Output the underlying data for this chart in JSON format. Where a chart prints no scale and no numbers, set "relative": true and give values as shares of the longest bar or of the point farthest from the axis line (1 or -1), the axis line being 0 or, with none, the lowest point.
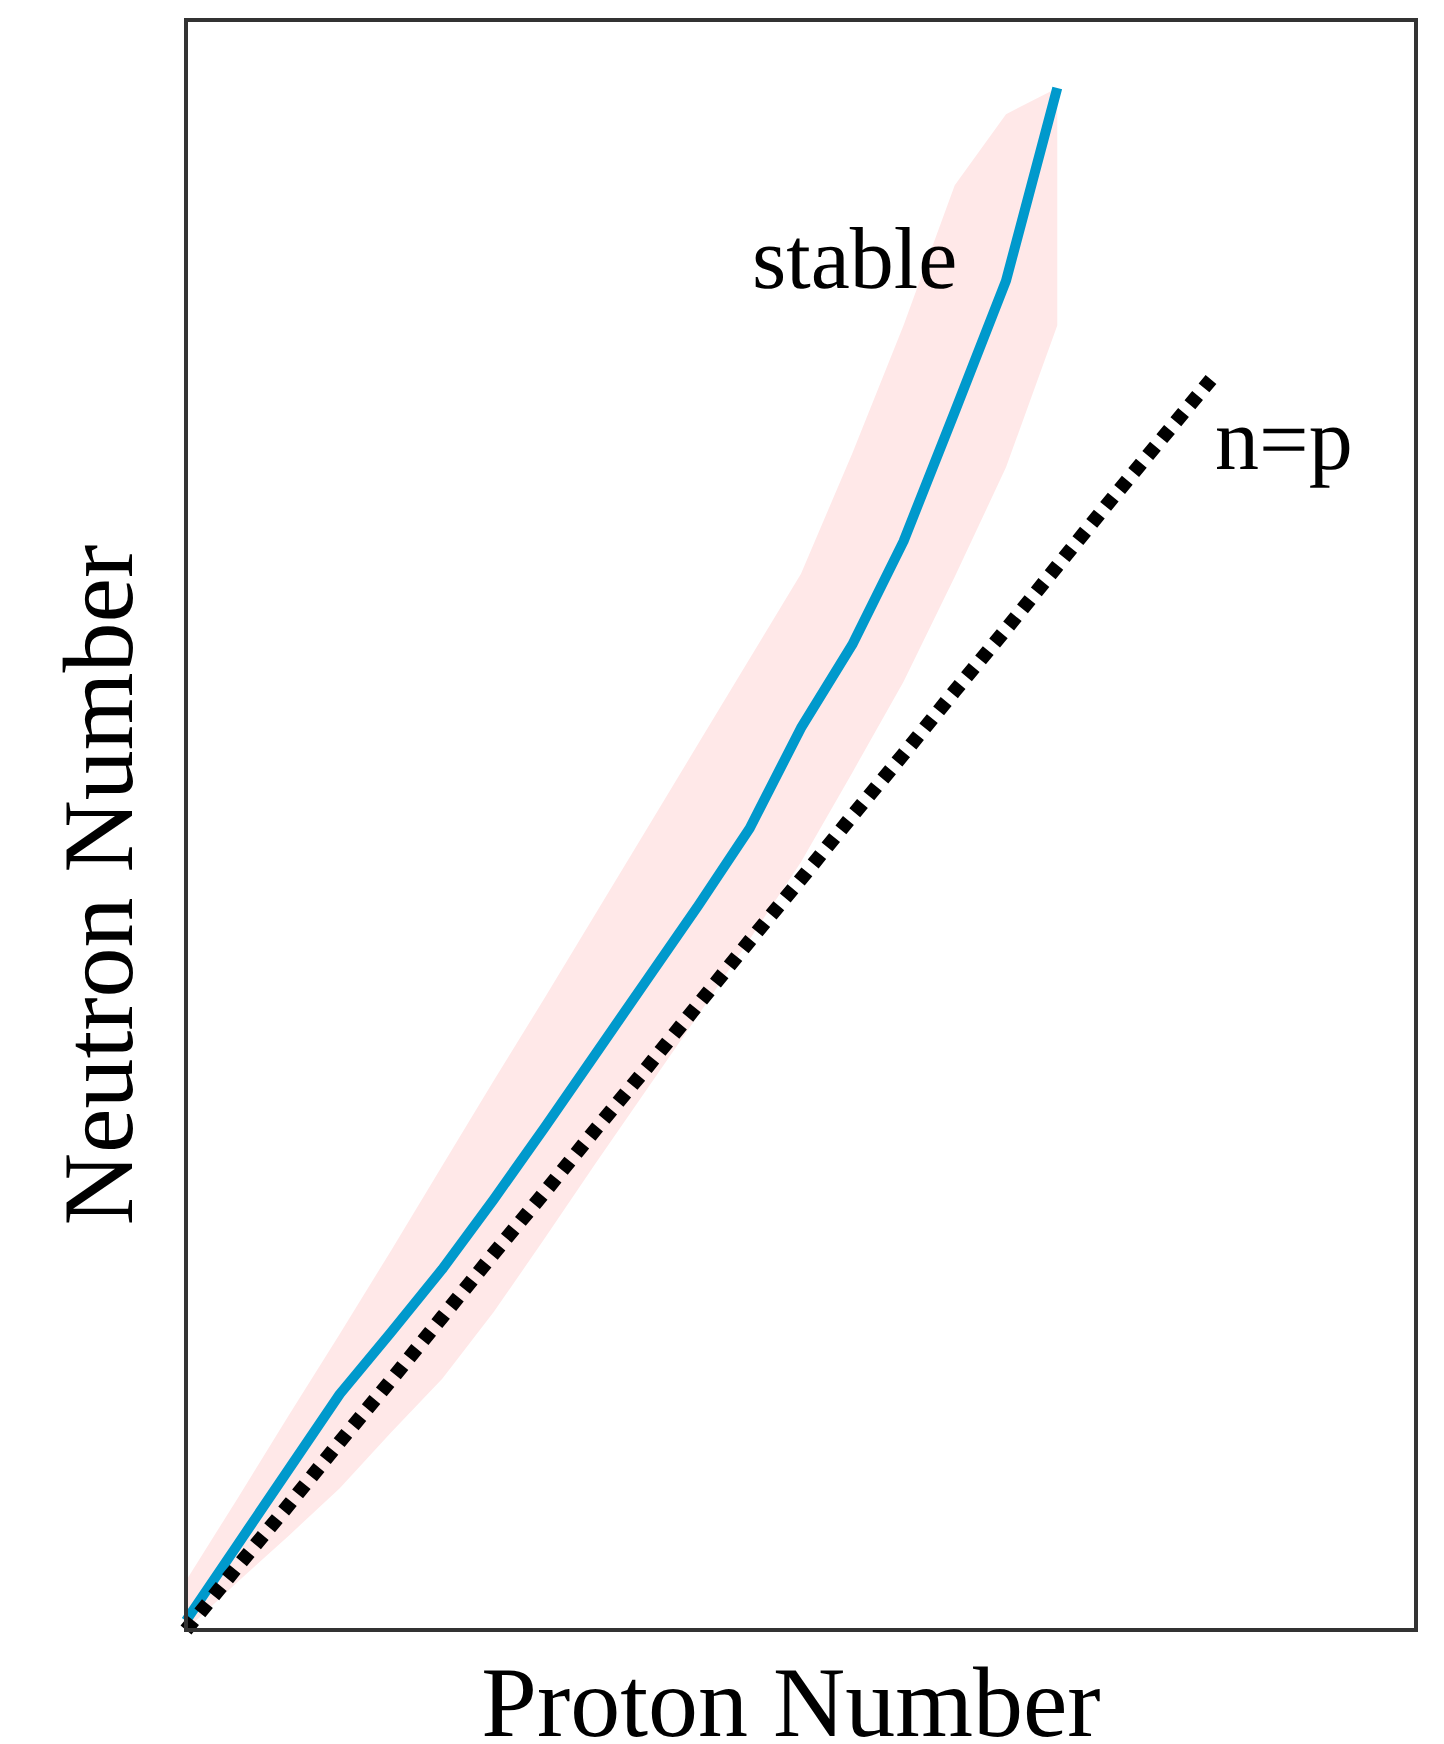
{
  "chart_data": {
    "type": "line",
    "relative": true,
    "xlabel": "Proton Number",
    "ylabel": "Neutron Number",
    "categories": [
      null,
      null,
      null,
      null,
      null,
      null,
      null,
      null,
      null,
      null,
      null,
      null,
      null,
      null,
      null,
      null,
      null,
      null,
      null,
      null,
      null,
      null,
      null,
      null,
      null
    ],
    "series": [
      {
        "name": "stable",
        "color": "#0099cc",
        "line_style": "solid",
        "values": [
          0.006,
          0.055,
          0.104,
          0.153,
          0.193,
          0.234,
          0.279,
          0.326,
          0.374,
          0.422,
          0.47,
          0.52,
          0.585,
          0.639,
          0.706,
          0.79,
          0.875,
          1.0,
          null,
          null,
          null,
          null,
          null,
          null,
          null
        ],
        "lower": [
          0,
          0.031,
          0.061,
          0.092,
          0.128,
          0.163,
          0.206,
          0.254,
          0.303,
          0.351,
          0.399,
          0.448,
          0.498,
          0.556,
          0.615,
          0.683,
          0.754,
          0.846,
          null,
          null,
          null,
          null,
          null,
          null,
          null
        ],
        "upper": [
          0.032,
          0.085,
          0.139,
          0.192,
          0.246,
          0.301,
          0.356,
          0.41,
          0.465,
          0.52,
          0.575,
          0.63,
          0.685,
          0.763,
          0.846,
          0.937,
          0.983,
          1.0,
          null,
          null,
          null,
          null,
          null,
          null,
          null
        ]
      },
      {
        "name": "n=p",
        "color": "#000000",
        "line_style": "dotted",
        "values": [
          0,
          0.041,
          0.081,
          0.122,
          0.162,
          0.203,
          0.244,
          0.284,
          0.325,
          0.365,
          0.406,
          0.447,
          0.487,
          0.528,
          0.568,
          0.609,
          0.649,
          0.69,
          0.731,
          0.771,
          0.811,
          null,
          null,
          null,
          null
        ]
      }
    ]
  }
}
